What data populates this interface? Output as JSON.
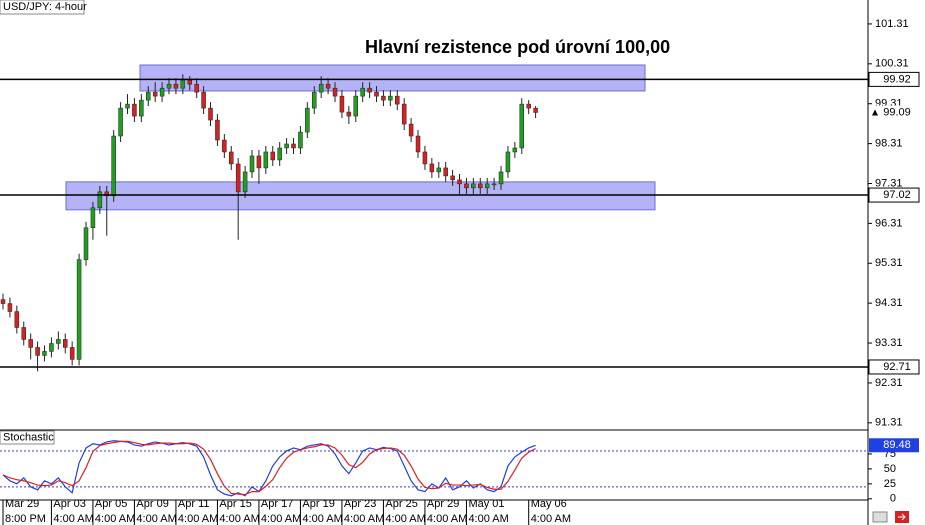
{
  "chart_data": {
    "type": "candlestick",
    "title": "USD/JPY: 4-hour",
    "annotation": "Hlavní rezistence pod úrovní 100,00",
    "categories": [
      "Mar 29",
      null,
      null,
      null,
      null,
      null,
      null,
      "Apr 03",
      null,
      null,
      null,
      null,
      null,
      "Apr 05",
      null,
      null,
      null,
      null,
      null,
      "Apr 09",
      null,
      null,
      null,
      null,
      null,
      "Apr 11",
      null,
      null,
      null,
      null,
      null,
      "Apr 15",
      null,
      null,
      null,
      null,
      null,
      "Apr 17",
      null,
      null,
      null,
      null,
      null,
      "Apr 19",
      null,
      null,
      null,
      null,
      null,
      "Apr 23",
      null,
      null,
      null,
      null,
      null,
      "Apr 25",
      null,
      null,
      null,
      null,
      null,
      "Apr 29",
      null,
      null,
      null,
      null,
      null,
      "May 01",
      null,
      null,
      null,
      null,
      null,
      null,
      null,
      null,
      "May 06",
      null
    ],
    "category_times": [
      "8:00 PM",
      null,
      null,
      null,
      null,
      null,
      null,
      "4:00 AM",
      null,
      null,
      null,
      null,
      null,
      "4:00 AM",
      null,
      null,
      null,
      null,
      null,
      "4:00 AM",
      null,
      null,
      null,
      null,
      null,
      "4:00 AM",
      null,
      null,
      null,
      null,
      null,
      "4:00 AM",
      null,
      null,
      null,
      null,
      null,
      "4:00 AM",
      null,
      null,
      null,
      null,
      null,
      "4:00 AM",
      null,
      null,
      null,
      null,
      null,
      "4:00 AM",
      null,
      null,
      null,
      null,
      null,
      "4:00 AM",
      null,
      null,
      null,
      null,
      null,
      "4:00 AM",
      null,
      null,
      null,
      null,
      null,
      "4:00 AM",
      null,
      null,
      null,
      null,
      null,
      null,
      null,
      null,
      "4:00 AM",
      null
    ],
    "open": [
      94.4,
      94.3,
      94.1,
      93.7,
      93.4,
      93.2,
      93.0,
      93.1,
      93.3,
      93.4,
      93.2,
      92.9,
      95.4,
      96.2,
      96.7,
      97.1,
      97.0,
      98.5,
      99.2,
      99.3,
      99.0,
      99.4,
      99.6,
      99.5,
      99.7,
      99.8,
      99.7,
      99.9,
      99.8,
      99.6,
      99.2,
      98.9,
      98.4,
      98.1,
      97.8,
      97.1,
      97.6,
      98.0,
      97.7,
      98.1,
      97.9,
      98.2,
      98.3,
      98.2,
      98.6,
      99.2,
      99.6,
      99.8,
      99.7,
      99.5,
      99.1,
      99.0,
      99.5,
      99.7,
      99.6,
      99.5,
      99.4,
      99.5,
      99.3,
      98.8,
      98.5,
      98.1,
      97.8,
      97.6,
      97.7,
      97.5,
      97.4,
      97.3,
      97.2,
      97.3,
      97.2,
      97.3,
      97.3,
      97.6,
      98.1,
      98.2,
      99.3,
      99.2
    ],
    "high": [
      94.55,
      94.45,
      94.25,
      93.85,
      93.55,
      93.35,
      93.25,
      93.45,
      93.6,
      93.55,
      93.35,
      95.55,
      96.35,
      96.85,
      97.25,
      97.25,
      98.65,
      99.35,
      99.55,
      99.45,
      99.55,
      99.75,
      99.85,
      99.85,
      99.95,
      99.95,
      100.05,
      100.0,
      99.95,
      99.75,
      99.35,
      99.05,
      98.55,
      98.25,
      97.95,
      97.75,
      98.15,
      98.15,
      98.25,
      98.25,
      98.35,
      98.45,
      98.45,
      98.75,
      99.35,
      99.75,
      100.0,
      99.95,
      99.85,
      99.65,
      99.25,
      99.65,
      99.85,
      99.85,
      99.75,
      99.65,
      99.65,
      99.65,
      99.45,
      98.95,
      98.65,
      98.25,
      97.95,
      97.85,
      97.85,
      97.65,
      97.55,
      97.45,
      97.45,
      97.45,
      97.45,
      97.45,
      97.75,
      98.25,
      98.35,
      99.45,
      99.4,
      99.25
    ],
    "low": [
      94.15,
      93.95,
      93.55,
      93.25,
      92.9,
      92.6,
      92.85,
      92.95,
      93.15,
      93.05,
      92.75,
      92.75,
      95.25,
      95.9,
      96.55,
      96.0,
      96.85,
      98.35,
      99.05,
      98.85,
      98.85,
      99.25,
      99.35,
      99.35,
      99.55,
      99.55,
      99.55,
      99.65,
      99.45,
      99.05,
      98.75,
      98.25,
      97.95,
      97.65,
      95.9,
      96.95,
      97.45,
      97.3,
      97.55,
      97.75,
      97.75,
      98.05,
      98.05,
      98.05,
      98.45,
      99.05,
      99.45,
      99.55,
      99.35,
      98.95,
      98.8,
      98.85,
      99.35,
      99.45,
      99.35,
      99.25,
      99.25,
      99.15,
      98.65,
      98.35,
      97.95,
      97.65,
      97.45,
      97.45,
      97.35,
      97.25,
      97.05,
      97.05,
      97.05,
      97.05,
      97.05,
      97.15,
      97.15,
      97.45,
      97.95,
      98.05,
      99.05,
      98.95
    ],
    "close": [
      94.3,
      94.1,
      93.7,
      93.4,
      93.2,
      93.0,
      93.1,
      93.3,
      93.4,
      93.2,
      92.9,
      95.4,
      96.2,
      96.7,
      97.1,
      97.0,
      98.5,
      99.2,
      99.3,
      99.0,
      99.4,
      99.6,
      99.5,
      99.7,
      99.8,
      99.7,
      99.9,
      99.8,
      99.6,
      99.2,
      98.9,
      98.4,
      98.1,
      97.8,
      97.1,
      97.6,
      98.0,
      97.7,
      98.1,
      97.9,
      98.2,
      98.3,
      98.2,
      98.6,
      99.2,
      99.6,
      99.8,
      99.7,
      99.5,
      99.1,
      99.0,
      99.5,
      99.7,
      99.6,
      99.5,
      99.4,
      99.5,
      99.3,
      98.8,
      98.5,
      98.1,
      97.8,
      97.6,
      97.7,
      97.5,
      97.4,
      97.3,
      97.2,
      97.3,
      97.2,
      97.3,
      97.3,
      97.6,
      98.1,
      98.2,
      99.3,
      99.2,
      99.09
    ],
    "up_color": "#1f9e1f",
    "down_color": "#d42222",
    "ylim": [
      91.13,
      101.91
    ],
    "yticks": [
      91.31,
      92.31,
      93.31,
      94.31,
      95.31,
      96.31,
      97.31,
      98.31,
      99.31,
      100.31,
      101.31
    ],
    "levels": [
      99.92,
      97.02,
      92.71
    ],
    "level_color": "#000000",
    "zones": [
      {
        "high": 100.28,
        "low": 99.63
      },
      {
        "high": 97.35,
        "low": 96.65
      }
    ],
    "zone_color": "#9a9af2",
    "stochastic": {
      "title": "Stochastic",
      "ylim": [
        -2,
        115
      ],
      "yticks": [
        0,
        25,
        50,
        75
      ],
      "levels": [
        80,
        20
      ],
      "series": [
        {
          "color": "#2040e0",
          "values": [
            40,
            30,
            25,
            35,
            20,
            15,
            30,
            25,
            35,
            20,
            10,
            60,
            85,
            92,
            90,
            95,
            97,
            96,
            95,
            90,
            88,
            92,
            95,
            93,
            90,
            92,
            94,
            92,
            88,
            70,
            40,
            15,
            8,
            5,
            10,
            5,
            20,
            12,
            30,
            55,
            70,
            80,
            85,
            82,
            88,
            90,
            92,
            88,
            75,
            55,
            42,
            60,
            80,
            85,
            82,
            86,
            84,
            80,
            55,
            30,
            15,
            12,
            25,
            18,
            35,
            15,
            20,
            30,
            18,
            25,
            15,
            12,
            20,
            55,
            70,
            78,
            85,
            89.48
          ]
        },
        {
          "color": "#e02020",
          "values": [
            40,
            35,
            32,
            30,
            27,
            23,
            22,
            23,
            30,
            27,
            22,
            30,
            52,
            79,
            89,
            92,
            94,
            96,
            96,
            94,
            91,
            90,
            92,
            93,
            93,
            92,
            92,
            93,
            91,
            83,
            66,
            42,
            21,
            9,
            8,
            7,
            12,
            12,
            21,
            32,
            52,
            68,
            78,
            82,
            85,
            87,
            90,
            90,
            85,
            73,
            57,
            52,
            61,
            75,
            82,
            84,
            85,
            83,
            73,
            55,
            33,
            19,
            17,
            18,
            26,
            23,
            23,
            22,
            23,
            24,
            19,
            16,
            16,
            29,
            48,
            68,
            78,
            84
          ]
        }
      ]
    }
  }
}
